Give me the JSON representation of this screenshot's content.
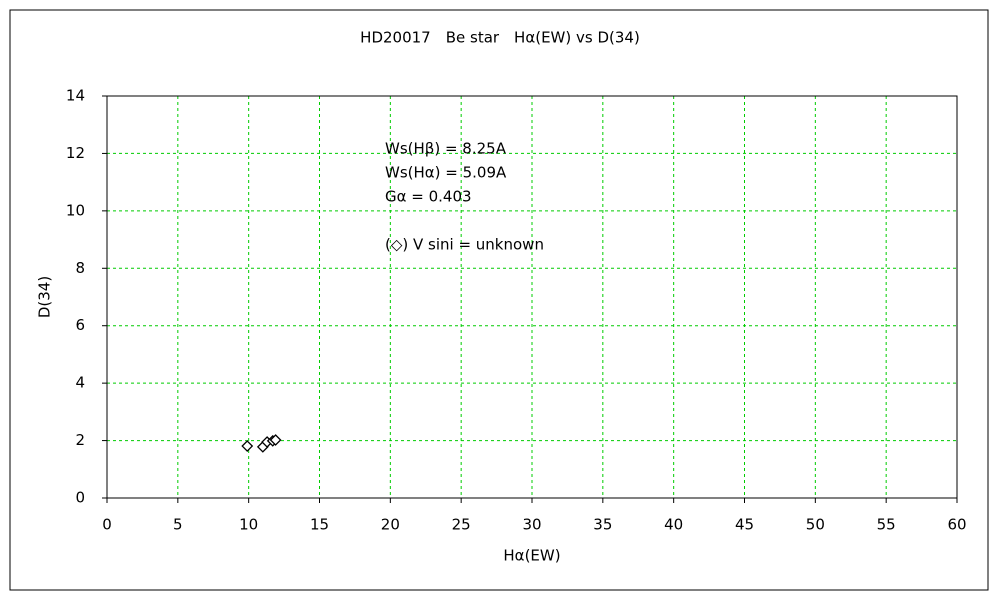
{
  "chart_data": {
    "type": "scatter",
    "title": "HD20017　Be star　Hα(EW) vs D(34)",
    "x_label": "Hα(EW)",
    "y_label": "D(34)",
    "annotations": [
      "Ws(Hβ) = 8.25A",
      "Ws(Hα) = 5.09A",
      "Gα = 0.403",
      "(◇) V sini = unknown"
    ],
    "series": [
      {
        "marker": "diamond",
        "color": "#000000",
        "x": [
          9.9,
          11.0,
          11.3,
          11.7,
          11.9
        ],
        "values": [
          1.81,
          1.78,
          1.95,
          1.99,
          2.02
        ]
      }
    ],
    "xlim": [
      0,
      60
    ],
    "xticks": [
      0,
      5,
      10,
      15,
      20,
      25,
      30,
      35,
      40,
      45,
      50,
      55,
      60
    ],
    "ylim": [
      0,
      14
    ],
    "yticks": [
      0,
      2,
      4,
      6,
      8,
      10,
      12,
      14
    ],
    "grid": true,
    "grid_color": "#00cc00"
  }
}
